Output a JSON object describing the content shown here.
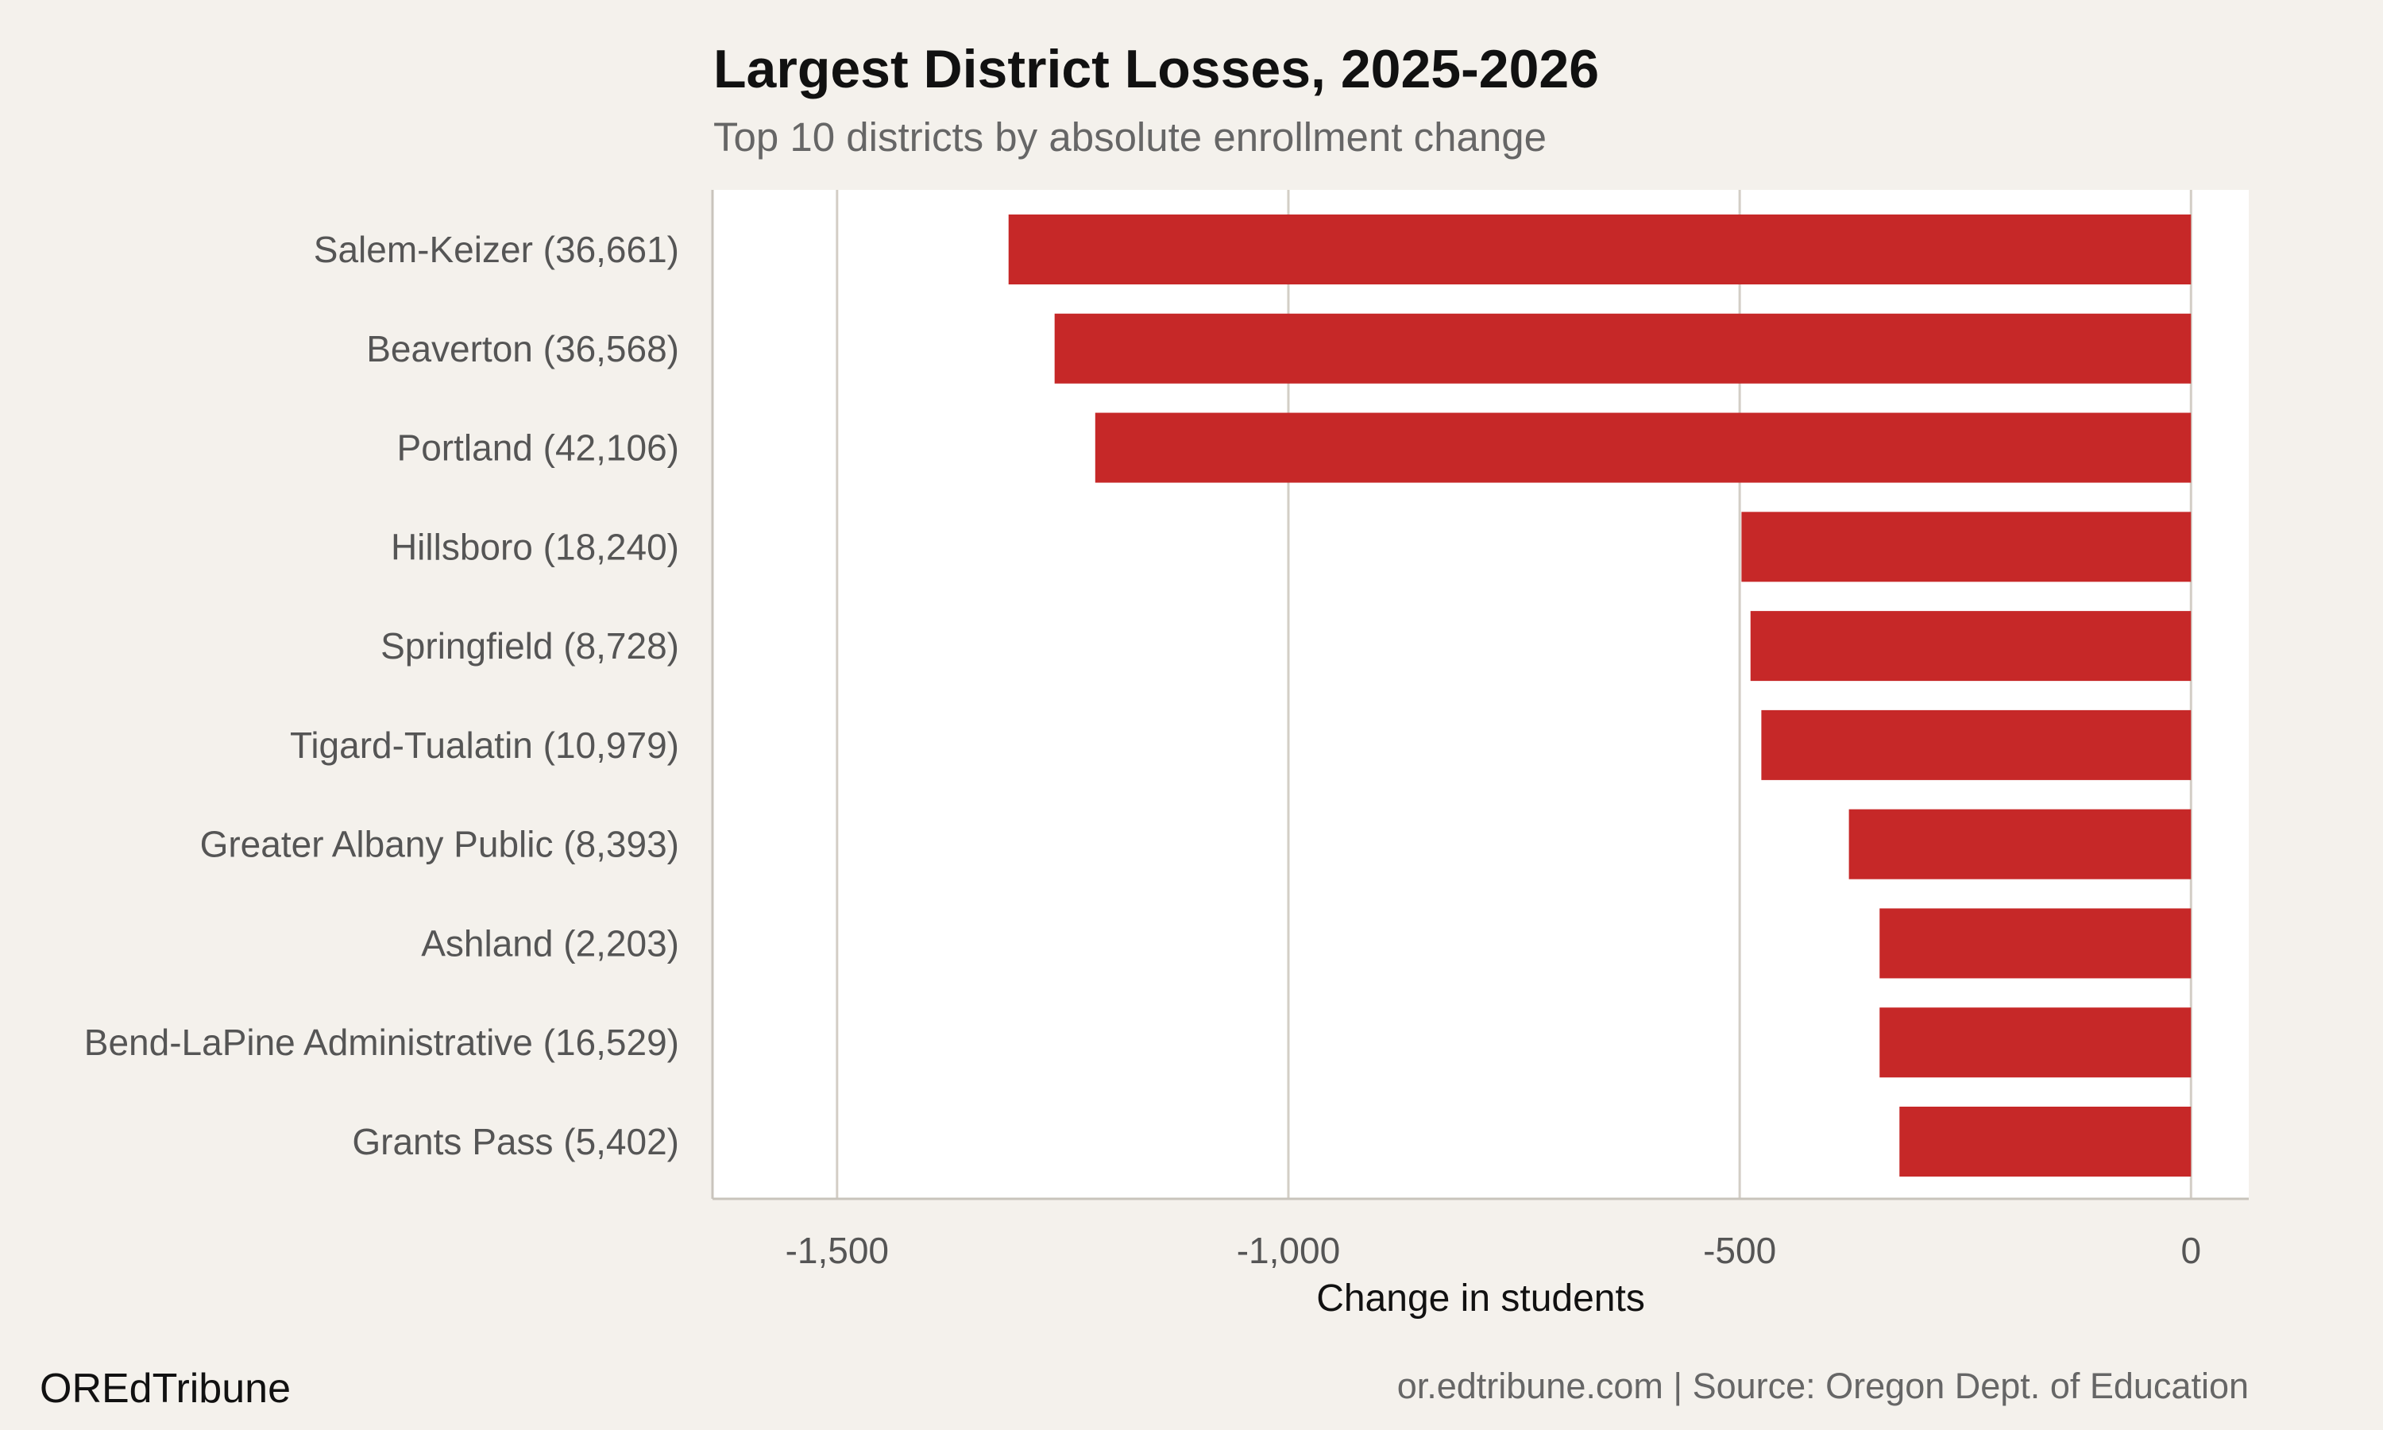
{
  "chart_data": {
    "type": "bar",
    "orientation": "horizontal",
    "title": "Largest District Losses, 2025-2026",
    "subtitle": "Top 10 districts by absolute enrollment change",
    "xlabel": "Change in students",
    "ylabel": "",
    "categories": [
      "Salem-Keizer (36,661)",
      "Beaverton (36,568)",
      "Portland (42,106)",
      "Hillsboro (18,240)",
      "Springfield (8,728)",
      "Tigard-Tualatin (10,979)",
      "Greater Albany Public (8,393)",
      "Ashland (2,203)",
      "Bend-LaPine Administrative (16,529)",
      "Grants Pass (5,402)"
    ],
    "values": [
      -1310,
      -1259,
      -1214,
      -498,
      -488,
      -476,
      -379,
      -345,
      -345,
      -323
    ],
    "xlim": [
      -1638,
      64
    ],
    "xticks": [
      -1500,
      -1000,
      -500,
      0
    ],
    "xtick_labels": [
      "-1,500",
      "-1,000",
      "-500",
      "0"
    ],
    "grid": "vertical",
    "bar_color": "#c62828",
    "panel_color": "#ffffff",
    "background_color": "#f4f1ec"
  },
  "footer": {
    "brand": "OREdTribune",
    "source": "or.edtribune.com | Source: Oregon Dept. of Education"
  }
}
